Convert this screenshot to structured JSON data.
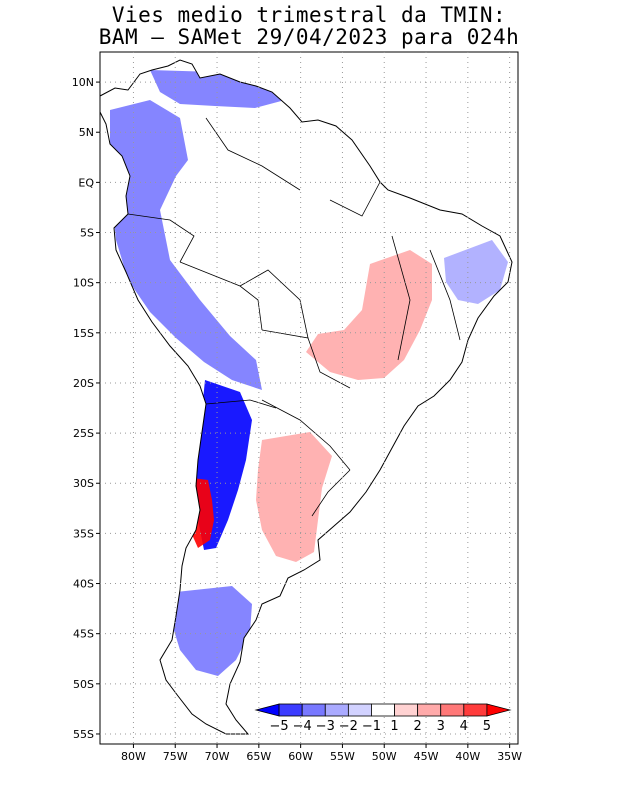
{
  "title": {
    "line1": "Vies medio trimestral da TMIN:",
    "line2": "BAM – SAMet 29/04/2023  para 024h"
  },
  "axes": {
    "lat_labels": [
      "10N",
      "5N",
      "EQ",
      "5S",
      "10S",
      "15S",
      "20S",
      "25S",
      "30S",
      "35S",
      "40S",
      "45S",
      "50S",
      "55S"
    ],
    "lat_values": [
      10,
      5,
      0,
      -5,
      -10,
      -15,
      -20,
      -25,
      -30,
      -35,
      -40,
      -45,
      -50,
      -55
    ],
    "lon_labels": [
      "80W",
      "75W",
      "70W",
      "65W",
      "60W",
      "55W",
      "50W",
      "45W",
      "40W",
      "35W"
    ],
    "lon_values": [
      -80,
      -75,
      -70,
      -65,
      -60,
      -55,
      -50,
      -45,
      -40,
      -35
    ],
    "lat_range": [
      -56,
      13
    ],
    "lon_range": [
      -84,
      -34
    ],
    "grid": true
  },
  "colorbar": {
    "labels": [
      "−5",
      "−4",
      "−3",
      "−2",
      "−1",
      "1",
      "2",
      "3",
      "4",
      "5"
    ],
    "colors": [
      "#0000ff",
      "#3c3cff",
      "#7878ff",
      "#aaaaff",
      "#d2d2ff",
      "#ffffff",
      "#ffd2d2",
      "#ffaaaa",
      "#ff7878",
      "#ff3c3c",
      "#ff0000"
    ]
  },
  "colors": {
    "land_neutral": "#ffffff",
    "border": "#000000",
    "grid": "#999999"
  },
  "regions": [
    {
      "name": "andes-west-blue",
      "level": -3
    },
    {
      "name": "atacama-deep-blue",
      "level": -5
    },
    {
      "name": "central-chile-red",
      "level": 5
    },
    {
      "name": "patagonia-blue",
      "level": -3
    },
    {
      "name": "caribbean-blue",
      "level": -3
    },
    {
      "name": "argentina-pampas-red",
      "level": 2
    },
    {
      "name": "brazil-interior-red",
      "level": 2
    },
    {
      "name": "brazil-northeast-blue",
      "level": -2
    }
  ]
}
